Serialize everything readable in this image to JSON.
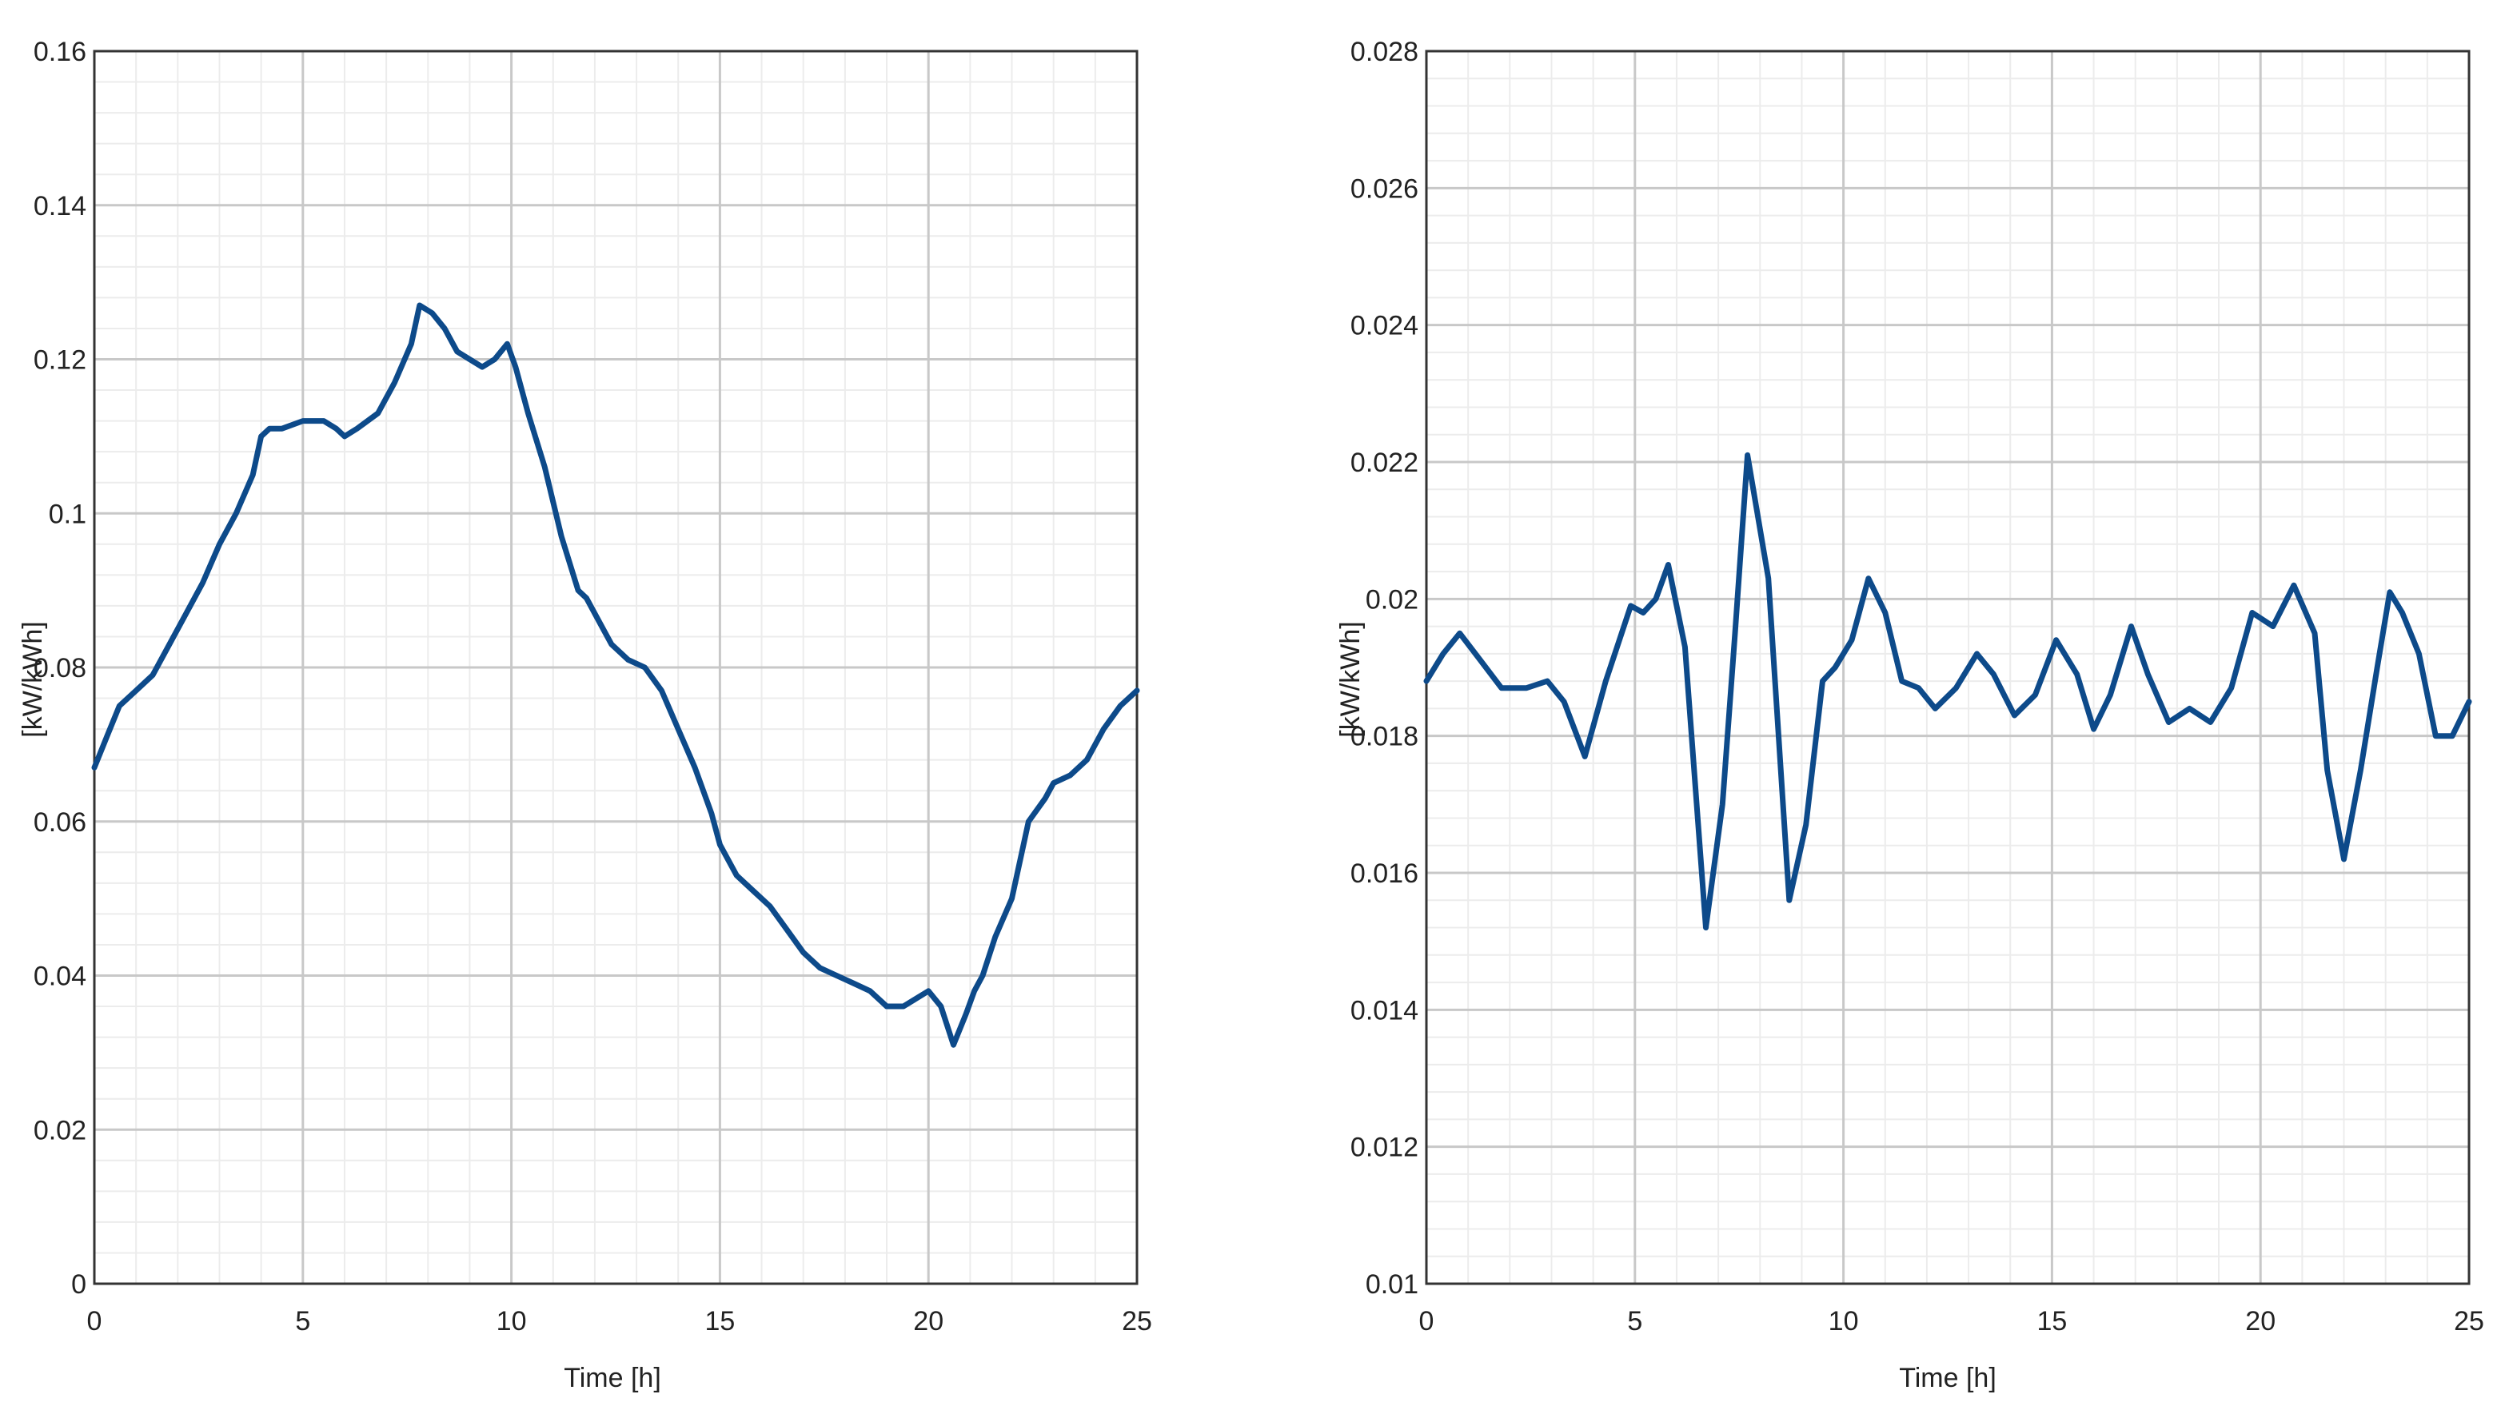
{
  "chart_data": [
    {
      "type": "line",
      "xlabel": "Time [h]",
      "ylabel": "[kW/kWh]",
      "xlim": [
        0,
        25
      ],
      "ylim": [
        0,
        0.16
      ],
      "xticks": [
        0,
        5,
        10,
        15,
        20,
        25
      ],
      "xtick_labels": [
        "0",
        "5",
        "10",
        "15",
        "20",
        "25"
      ],
      "yticks": [
        0,
        0.02,
        0.04,
        0.06,
        0.08,
        0.1,
        0.12,
        0.14,
        0.16
      ],
      "ytick_labels": [
        "0",
        "0.02",
        "0.04",
        "0.06",
        "0.08",
        "0.1",
        "0.12",
        "0.14",
        "0.16"
      ],
      "grid": true,
      "line_color": "#0d4a8a",
      "series": [
        {
          "x": [
            0,
            0.3,
            0.6,
            1.0,
            1.4,
            1.8,
            2.2,
            2.6,
            3.0,
            3.4,
            3.8,
            4.0,
            4.2,
            4.5,
            5.0,
            5.5,
            5.8,
            6.0,
            6.3,
            6.8,
            7.2,
            7.6,
            7.8,
            8.1,
            8.4,
            8.7,
            9.0,
            9.3,
            9.6,
            9.9,
            10.1,
            10.4,
            10.8,
            11.2,
            11.6,
            11.8,
            12.1,
            12.4,
            12.8,
            13.2,
            13.6,
            14.0,
            14.4,
            14.8,
            15.0,
            15.4,
            15.8,
            16.2,
            16.6,
            17.0,
            17.4,
            17.8,
            18.2,
            18.6,
            19.0,
            19.4,
            19.7,
            20.0,
            20.3,
            20.6,
            20.9,
            21.1,
            21.3,
            21.6,
            22.0,
            22.4,
            22.8,
            23.0,
            23.4,
            23.8,
            24.2,
            24.6,
            25.0
          ],
          "y": [
            0.067,
            0.071,
            0.075,
            0.077,
            0.079,
            0.083,
            0.087,
            0.091,
            0.096,
            0.1,
            0.105,
            0.11,
            0.111,
            0.111,
            0.112,
            0.112,
            0.111,
            0.11,
            0.111,
            0.113,
            0.117,
            0.122,
            0.127,
            0.126,
            0.124,
            0.121,
            0.12,
            0.119,
            0.12,
            0.122,
            0.119,
            0.113,
            0.106,
            0.097,
            0.09,
            0.089,
            0.086,
            0.083,
            0.081,
            0.08,
            0.077,
            0.072,
            0.067,
            0.061,
            0.057,
            0.053,
            0.051,
            0.049,
            0.046,
            0.043,
            0.041,
            0.04,
            0.039,
            0.038,
            0.036,
            0.036,
            0.037,
            0.038,
            0.036,
            0.031,
            0.035,
            0.038,
            0.04,
            0.045,
            0.05,
            0.06,
            0.063,
            0.065,
            0.066,
            0.068,
            0.072,
            0.075,
            0.077
          ]
        }
      ]
    },
    {
      "type": "line",
      "xlabel": "Time [h]",
      "ylabel": "[kW/kWh]",
      "xlim": [
        0,
        25
      ],
      "ylim": [
        0.01,
        0.028
      ],
      "xticks": [
        0,
        5,
        10,
        15,
        20,
        25
      ],
      "xtick_labels": [
        "0",
        "5",
        "10",
        "15",
        "20",
        "25"
      ],
      "yticks": [
        0.01,
        0.012,
        0.014,
        0.016,
        0.018,
        0.02,
        0.022,
        0.024,
        0.026,
        0.028
      ],
      "ytick_labels": [
        "0.01",
        "0.012",
        "0.014",
        "0.016",
        "0.018",
        "0.02",
        "0.022",
        "0.024",
        "0.026",
        "0.028"
      ],
      "grid": true,
      "line_color": "#0d4a8a",
      "series": [
        {
          "x": [
            0,
            0.4,
            0.8,
            1.3,
            1.8,
            2.4,
            2.9,
            3.3,
            3.8,
            4.3,
            4.9,
            5.2,
            5.5,
            5.8,
            6.2,
            6.7,
            7.1,
            7.4,
            7.7,
            8.2,
            8.7,
            9.1,
            9.5,
            9.8,
            10.2,
            10.6,
            11.0,
            11.4,
            11.8,
            12.2,
            12.7,
            13.2,
            13.6,
            14.1,
            14.6,
            15.1,
            15.6,
            16.0,
            16.4,
            16.9,
            17.3,
            17.8,
            18.3,
            18.8,
            19.3,
            19.8,
            20.3,
            20.8,
            21.3,
            21.6,
            22.0,
            22.4,
            22.8,
            23.1,
            23.4,
            23.8,
            24.2,
            24.6,
            25.0
          ],
          "y": [
            0.0188,
            0.0192,
            0.0195,
            0.0191,
            0.0187,
            0.0187,
            0.0188,
            0.0185,
            0.0177,
            0.0188,
            0.0199,
            0.0198,
            0.02,
            0.0205,
            0.0193,
            0.0152,
            0.017,
            0.0195,
            0.0221,
            0.0203,
            0.0156,
            0.0167,
            0.0188,
            0.019,
            0.0194,
            0.0203,
            0.0198,
            0.0188,
            0.0187,
            0.0184,
            0.0187,
            0.0192,
            0.0189,
            0.0183,
            0.0186,
            0.0194,
            0.0189,
            0.0181,
            0.0186,
            0.0196,
            0.0189,
            0.0182,
            0.0184,
            0.0182,
            0.0187,
            0.0198,
            0.0196,
            0.0202,
            0.0195,
            0.0175,
            0.0162,
            0.0175,
            0.019,
            0.0201,
            0.0198,
            0.0192,
            0.018,
            0.018,
            0.0185
          ]
        }
      ]
    }
  ]
}
